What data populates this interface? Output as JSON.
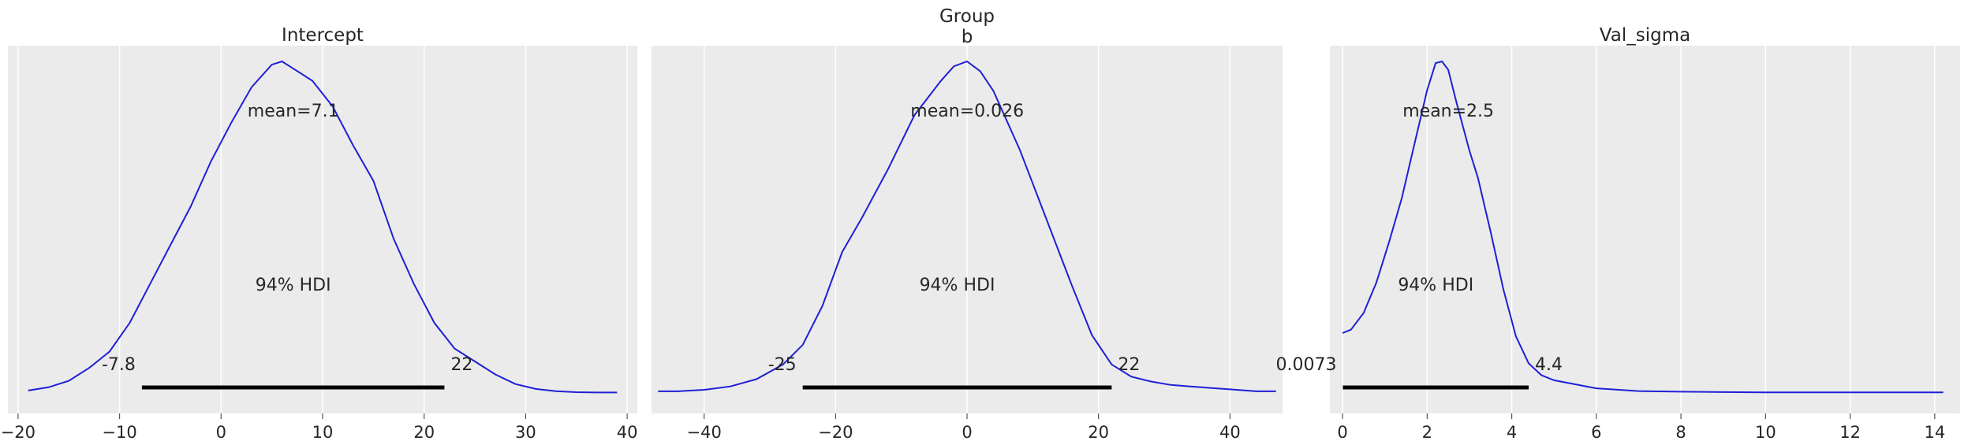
{
  "chart_data": [
    {
      "type": "area",
      "title": "Intercept",
      "xlim": [
        -21,
        41
      ],
      "xticks": [
        -20,
        -10,
        0,
        10,
        20,
        30,
        40
      ],
      "tick_labels": [
        "−20",
        "−10",
        "0",
        "10",
        "20",
        "30",
        "40"
      ],
      "grid": true,
      "line_color": "#1f1fd6",
      "density": {
        "x": [
          -19,
          -17,
          -15,
          -13,
          -11,
          -9,
          -7,
          -5,
          -3,
          -1,
          1,
          3,
          5,
          6,
          7,
          9,
          11,
          13,
          15,
          17,
          19,
          21,
          23,
          25,
          27,
          29,
          31,
          33,
          35,
          37,
          39
        ],
        "y": [
          0.001,
          0.002,
          0.004,
          0.008,
          0.013,
          0.022,
          0.034,
          0.046,
          0.058,
          0.072,
          0.084,
          0.095,
          0.102,
          0.103,
          0.101,
          0.097,
          0.089,
          0.077,
          0.066,
          0.048,
          0.034,
          0.022,
          0.014,
          0.01,
          0.006,
          0.003,
          0.0015,
          0.0008,
          0.0005,
          0.0004,
          0.0004
        ]
      },
      "mean": 7.1,
      "mean_label": "mean=7.1",
      "hdi": [
        -7.8,
        22
      ],
      "hdi_label": "94% HDI",
      "hdi_low_label": "-7.8",
      "hdi_high_label": "22"
    },
    {
      "type": "area",
      "title": "Group\nb",
      "xlim": [
        -48,
        48
      ],
      "xticks": [
        -40,
        -20,
        0,
        20,
        40
      ],
      "tick_labels": [
        "−40",
        "−20",
        "0",
        "20",
        "40"
      ],
      "grid": true,
      "line_color": "#1f1fd6",
      "density": {
        "x": [
          -47,
          -44,
          -40,
          -36,
          -32,
          -28,
          -25,
          -22,
          -19,
          -16,
          -12,
          -8,
          -4,
          -2,
          0,
          2,
          4,
          8,
          12,
          16,
          19,
          22,
          25,
          28,
          31,
          34,
          37,
          40,
          44,
          47
        ],
        "y": [
          0.0005,
          0.0005,
          0.0008,
          0.0015,
          0.003,
          0.006,
          0.01,
          0.018,
          0.029,
          0.036,
          0.046,
          0.057,
          0.064,
          0.067,
          0.068,
          0.066,
          0.062,
          0.05,
          0.036,
          0.022,
          0.012,
          0.006,
          0.0035,
          0.0025,
          0.0018,
          0.0015,
          0.0012,
          0.0009,
          0.0005,
          0.0005
        ]
      },
      "mean": 0.026,
      "mean_label": "mean=0.026",
      "hdi": [
        -25,
        22
      ],
      "hdi_label": "94% HDI",
      "hdi_low_label": "-25",
      "hdi_high_label": "22"
    },
    {
      "type": "area",
      "title": "Val_sigma",
      "xlim": [
        -0.3,
        14.6
      ],
      "xticks": [
        0,
        2,
        4,
        6,
        8,
        10,
        12,
        14
      ],
      "tick_labels": [
        "0",
        "2",
        "4",
        "6",
        "8",
        "10",
        "12",
        "14"
      ],
      "grid": true,
      "line_color": "#1f1fd6",
      "density": {
        "x": [
          0,
          0.2,
          0.5,
          0.8,
          1.1,
          1.4,
          1.7,
          2.0,
          2.2,
          2.35,
          2.5,
          2.7,
          3.0,
          3.2,
          3.5,
          3.8,
          4.1,
          4.4,
          4.7,
          5.0,
          5.5,
          6.0,
          6.5,
          7.0,
          8.0,
          9.0,
          10.0,
          11.0,
          12.0,
          13.0,
          14.0,
          14.2
        ],
        "y": [
          0.18,
          0.19,
          0.24,
          0.33,
          0.45,
          0.58,
          0.74,
          0.9,
          0.98,
          0.985,
          0.96,
          0.86,
          0.72,
          0.64,
          0.48,
          0.31,
          0.17,
          0.09,
          0.055,
          0.04,
          0.028,
          0.016,
          0.012,
          0.008,
          0.006,
          0.005,
          0.004,
          0.004,
          0.004,
          0.004,
          0.004,
          0.004
        ]
      },
      "mean": 2.5,
      "mean_label": "mean=2.5",
      "hdi": [
        0.0073,
        4.4
      ],
      "hdi_label": "94% HDI",
      "hdi_low_label": "0.0073",
      "hdi_high_label": "4.4"
    }
  ]
}
